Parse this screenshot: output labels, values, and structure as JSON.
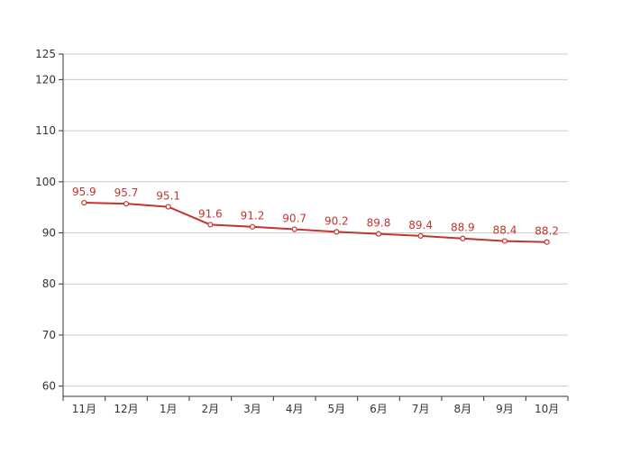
{
  "chart_data": {
    "type": "line",
    "categories": [
      "11月",
      "12月",
      "1月",
      "2月",
      "3月",
      "4月",
      "5月",
      "6月",
      "7月",
      "8月",
      "9月",
      "10月"
    ],
    "series": [
      {
        "values": [
          95.9,
          95.7,
          95.1,
          91.6,
          91.2,
          90.7,
          90.2,
          89.8,
          89.4,
          88.9,
          88.4,
          88.2
        ],
        "color": "#c23531"
      }
    ],
    "ylim": [
      58,
      125
    ],
    "yticks": [
      60,
      70,
      80,
      90,
      100,
      110,
      120,
      125
    ],
    "data_labels": true,
    "grid": true,
    "gridColor": "#cccccc",
    "axisColor": "#333333",
    "labelColor": "#333333"
  }
}
